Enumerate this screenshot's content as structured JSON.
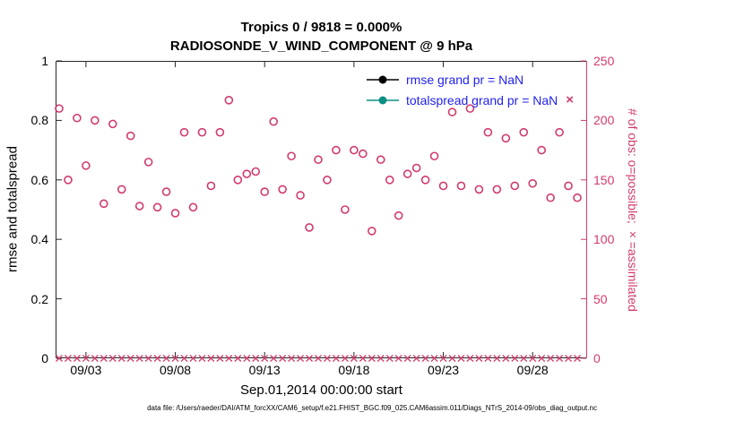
{
  "figure": {
    "background": "#ffffff"
  },
  "legend": {
    "text_color": "#2222ee",
    "extra_marker": "×",
    "items": [
      {
        "label": "rmse grand pr = NaN",
        "marker_color": "#000000"
      },
      {
        "label": "totalspread grand pr = NaN",
        "marker_color": "#0d8f85"
      }
    ]
  },
  "caption": "data file: /Users/raeder/DAI/ATM_forcXX/CAM6_setup/f.e21.FHIST_BGC.f09_025.CAM6assim.011/Diags_NTrS_2014-09/obs_diag_output.nc",
  "chart_data": {
    "type": "scatter",
    "title": "Tropics 0 / 9818 = 0.000%",
    "subtitle": "RADIOSONDE_V_WIND_COMPONENT @ 9 hPa",
    "x_start_label": "Sep.01,2014 00:00:00 start",
    "grid": false,
    "legend_position": "upper-right-inside",
    "xlim_days": [
      1.3,
      31.05
    ],
    "x_tick_days": [
      3,
      8,
      13,
      18,
      23,
      28
    ],
    "x_tick_labels": [
      "09/03",
      "09/08",
      "09/13",
      "09/18",
      "09/23",
      "09/28"
    ],
    "y_left": {
      "label": "rmse and totalspread",
      "lim": [
        0,
        1
      ],
      "tick_values": [
        0,
        0.2,
        0.4,
        0.6,
        0.8,
        1
      ],
      "tick_labels": [
        "0",
        "0.2",
        "0.4",
        "0.6",
        "0.8",
        "1"
      ],
      "axis_color": "#262626"
    },
    "y_right": {
      "label": "# of obs: o=possible; ×=assimilated",
      "lim": [
        0,
        250
      ],
      "tick_values": [
        0,
        50,
        100,
        150,
        200,
        250
      ],
      "tick_labels": [
        "0",
        "50",
        "100",
        "150",
        "200",
        "250"
      ],
      "color": "#d23a6e"
    },
    "x_days": [
      1.5,
      2,
      2.5,
      3,
      3.5,
      4,
      4.5,
      5,
      5.5,
      6,
      6.5,
      7,
      7.5,
      8,
      8.5,
      9,
      9.5,
      10,
      10.5,
      11,
      11.5,
      12,
      12.5,
      13,
      13.5,
      14,
      14.5,
      15,
      15.5,
      16,
      16.5,
      17,
      17.5,
      18,
      18.5,
      19,
      19.5,
      20,
      20.5,
      21,
      21.5,
      22,
      22.5,
      23,
      23.5,
      24,
      24.5,
      25,
      25.5,
      26,
      26.5,
      27,
      27.5,
      28,
      28.5,
      29,
      29.5,
      30,
      30.5
    ],
    "series": [
      {
        "name": "possible obs",
        "marker": "o",
        "color": "#d23a6e",
        "y_axis": "right",
        "values": [
          210,
          150,
          202,
          162,
          200,
          130,
          197,
          142,
          187,
          128,
          165,
          127,
          140,
          122,
          190,
          127,
          190,
          145,
          190,
          217,
          150,
          155,
          157,
          140,
          199,
          142,
          170,
          137,
          110,
          167,
          150,
          175,
          125,
          175,
          172,
          107,
          167,
          150,
          120,
          155,
          160,
          150,
          170,
          145,
          207,
          145,
          210,
          142,
          190,
          142,
          185,
          145,
          190,
          147,
          175,
          135,
          190,
          145,
          135
        ]
      },
      {
        "name": "assimilated obs",
        "marker": "x",
        "color": "#d23a6e",
        "y_axis": "right",
        "values": [
          0,
          0,
          0,
          0,
          0,
          0,
          0,
          0,
          0,
          0,
          0,
          0,
          0,
          0,
          0,
          0,
          0,
          0,
          0,
          0,
          0,
          0,
          0,
          0,
          0,
          0,
          0,
          0,
          0,
          0,
          0,
          0,
          0,
          0,
          0,
          0,
          0,
          0,
          0,
          0,
          0,
          0,
          0,
          0,
          0,
          0,
          0,
          0,
          0,
          0,
          0,
          0,
          0,
          0,
          0,
          0,
          0,
          0,
          0
        ]
      },
      {
        "name": "rmse",
        "marker": "filled-circle-with-line",
        "color": "#000000",
        "y_axis": "left",
        "values": "NaN (not plotted)"
      },
      {
        "name": "totalspread",
        "marker": "filled-circle-with-line",
        "color": "#0d8f85",
        "y_axis": "left",
        "values": "NaN (not plotted)"
      }
    ]
  }
}
